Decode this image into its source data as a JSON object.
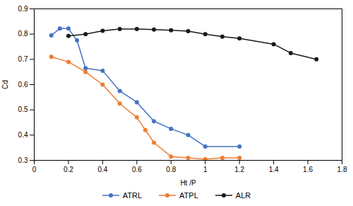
{
  "chart_data": {
    "type": "line",
    "xlabel": "Ht /P",
    "ylabel": "Cd",
    "series": [
      {
        "name": "ATRL",
        "color": "#4472C4",
        "x": [
          0.1,
          0.15,
          0.2,
          0.25,
          0.3,
          0.4,
          0.5,
          0.6,
          0.7,
          0.8,
          0.9,
          1.0,
          1.2
        ],
        "values": [
          0.795,
          0.822,
          0.822,
          0.775,
          0.665,
          0.655,
          0.575,
          0.53,
          0.455,
          0.425,
          0.4,
          0.355,
          0.355
        ]
      },
      {
        "name": "ATPL",
        "color": "#ED7D31",
        "x": [
          0.1,
          0.2,
          0.3,
          0.4,
          0.5,
          0.6,
          0.65,
          0.7,
          0.8,
          0.9,
          1.0,
          1.1,
          1.2
        ],
        "values": [
          0.71,
          0.69,
          0.65,
          0.6,
          0.525,
          0.47,
          0.42,
          0.37,
          0.315,
          0.31,
          0.305,
          0.31,
          0.31
        ]
      },
      {
        "name": "ALR",
        "color": "#1A1A1A",
        "x": [
          0.2,
          0.3,
          0.4,
          0.5,
          0.6,
          0.7,
          0.8,
          0.9,
          1.0,
          1.1,
          1.2,
          1.4,
          1.5,
          1.65
        ],
        "values": [
          0.793,
          0.8,
          0.813,
          0.82,
          0.82,
          0.818,
          0.815,
          0.812,
          0.8,
          0.79,
          0.783,
          0.76,
          0.725,
          0.7
        ]
      }
    ],
    "marker": "circle",
    "xlim": [
      0,
      1.8
    ],
    "ylim": [
      0.3,
      0.9
    ],
    "xticks": [
      0,
      0.2,
      0.4,
      0.6,
      0.8,
      1,
      1.2,
      1.4,
      1.6,
      1.8
    ],
    "yticks": [
      0.3,
      0.4,
      0.5,
      0.6,
      0.7,
      0.8,
      0.9
    ],
    "grid": false,
    "legend": "bottom"
  }
}
